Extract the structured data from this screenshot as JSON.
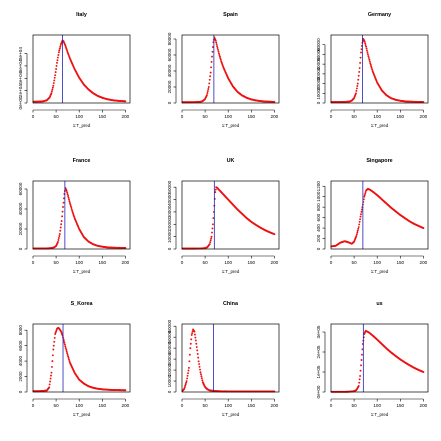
{
  "colors": {
    "curve": "#ee1111",
    "vline": "#2222bb",
    "frame": "#000000"
  },
  "chart_data": [
    {
      "type": "scatter",
      "title": "Italy",
      "xlabel": "1:T_pred",
      "xlim": [
        0,
        210
      ],
      "xticks": [
        "0",
        "50",
        "100",
        "150",
        "200"
      ],
      "ylim": [
        0,
        110000
      ],
      "yticks": [
        "0e+00",
        "2e+04",
        "4e+04",
        "6e+04",
        "8e+04"
      ],
      "ytick_values": [
        0,
        20000,
        40000,
        60000,
        80000
      ],
      "vline_x": 64,
      "series": [
        {
          "x": [
            0,
            6,
            12,
            18,
            24,
            30,
            36,
            40,
            44,
            48,
            52,
            56,
            60,
            62,
            64,
            66,
            70,
            75,
            80,
            90,
            100,
            110,
            120,
            130,
            140,
            150,
            160,
            170,
            180,
            190,
            200
          ],
          "values": [
            2000,
            2000,
            2200,
            2500,
            3000,
            4500,
            9000,
            16000,
            28000,
            45000,
            65000,
            82000,
            94000,
            98000,
            101000,
            100000,
            93000,
            82000,
            72000,
            55000,
            41000,
            30000,
            22000,
            16000,
            11500,
            8500,
            6300,
            4800,
            3800,
            3200,
            2800
          ]
        }
      ]
    },
    {
      "type": "scatter",
      "title": "Spain",
      "xlabel": "1:T_pred",
      "xlim": [
        0,
        210
      ],
      "xticks": [
        "0",
        "50",
        "100",
        "150",
        "200"
      ],
      "ylim": [
        0,
        85000
      ],
      "yticks": [
        "0",
        "20000",
        "40000",
        "60000",
        "80000"
      ],
      "ytick_values": [
        0,
        20000,
        40000,
        60000,
        80000
      ],
      "vline_x": 69,
      "series": [
        {
          "x": [
            0,
            10,
            20,
            30,
            40,
            45,
            50,
            54,
            58,
            62,
            65,
            68,
            70,
            73,
            76,
            80,
            85,
            90,
            100,
            110,
            120,
            130,
            140,
            150,
            160,
            170,
            180,
            190,
            200
          ],
          "values": [
            1000,
            1000,
            1000,
            1100,
            1500,
            2500,
            5000,
            10000,
            20000,
            38000,
            58000,
            76000,
            82000,
            78000,
            71000,
            62000,
            52000,
            44000,
            31000,
            21000,
            14000,
            9500,
            6500,
            4500,
            3200,
            2400,
            1900,
            1600,
            1400
          ]
        }
      ]
    },
    {
      "type": "scatter",
      "title": "Germany",
      "xlabel": "1:T_pred",
      "xlim": [
        0,
        210
      ],
      "xticks": [
        "0",
        "50",
        "100",
        "150",
        "200"
      ],
      "ylim": [
        0,
        70000
      ],
      "yticks": [
        "0",
        "10000",
        "20000",
        "30000",
        "40000",
        "50000",
        "60000"
      ],
      "ytick_values": [
        0,
        10000,
        20000,
        30000,
        40000,
        50000,
        60000
      ],
      "vline_x": 68,
      "series": [
        {
          "x": [
            0,
            10,
            20,
            30,
            40,
            45,
            50,
            54,
            58,
            62,
            65,
            68,
            70,
            73,
            76,
            80,
            85,
            90,
            100,
            110,
            120,
            130,
            140,
            150,
            160,
            170,
            180,
            190,
            200
          ],
          "values": [
            1000,
            1000,
            1000,
            1100,
            1500,
            2500,
            5000,
            10000,
            20000,
            36000,
            52000,
            62000,
            66000,
            63000,
            58000,
            50000,
            41000,
            33000,
            21000,
            13000,
            8000,
            5000,
            3300,
            2300,
            1700,
            1400,
            1200,
            1100,
            1000
          ]
        }
      ]
    },
    {
      "type": "scatter",
      "title": "France",
      "xlabel": "1:T_pred",
      "xlim": [
        0,
        210
      ],
      "xticks": [
        "0",
        "50",
        "100",
        "150",
        "200"
      ],
      "ylim": [
        0,
        68000
      ],
      "yticks": [
        "0",
        "20000",
        "40000",
        "60000"
      ],
      "ytick_values": [
        0,
        20000,
        40000,
        60000
      ],
      "vline_x": 69,
      "series": [
        {
          "x": [
            0,
            10,
            20,
            30,
            40,
            45,
            50,
            54,
            58,
            62,
            65,
            68,
            70,
            73,
            76,
            80,
            85,
            90,
            100,
            110,
            120,
            130,
            140,
            150,
            160,
            170,
            180,
            190,
            200
          ],
          "values": [
            500,
            500,
            500,
            600,
            900,
            1500,
            3000,
            7000,
            15000,
            28000,
            42000,
            55000,
            61000,
            58000,
            53000,
            46000,
            38000,
            31000,
            20000,
            12000,
            7500,
            4800,
            3200,
            2300,
            1700,
            1400,
            1200,
            1100,
            1000
          ]
        }
      ]
    },
    {
      "type": "scatter",
      "title": "UK",
      "xlabel": "1:T_pred",
      "xlim": [
        0,
        210
      ],
      "xticks": [
        "0",
        "50",
        "100",
        "150",
        "200"
      ],
      "ylim": [
        0,
        55000
      ],
      "yticks": [
        "0",
        "10000",
        "20000",
        "30000",
        "40000",
        "50000"
      ],
      "ytick_values": [
        0,
        10000,
        20000,
        30000,
        40000,
        50000
      ],
      "vline_x": 70,
      "series": [
        {
          "x": [
            0,
            10,
            20,
            30,
            40,
            50,
            55,
            60,
            64,
            67,
            70,
            72,
            74,
            76,
            80,
            90,
            100,
            110,
            120,
            130,
            140,
            150,
            160,
            170,
            180,
            190,
            200
          ],
          "values": [
            300,
            300,
            300,
            300,
            400,
            700,
            1500,
            4000,
            10000,
            20000,
            35000,
            46000,
            50000,
            49500,
            48000,
            44000,
            40000,
            36000,
            32000,
            28500,
            25000,
            22000,
            19500,
            17200,
            15200,
            13500,
            12000
          ]
        }
      ]
    },
    {
      "type": "scatter",
      "title": "Singapore",
      "xlabel": "1:T_pred",
      "xlim": [
        0,
        210
      ],
      "xticks": [
        "0",
        "50",
        "100",
        "150",
        "200"
      ],
      "ylim": [
        0,
        1300
      ],
      "yticks": [
        "0",
        "200",
        "400",
        "600",
        "800",
        "1000",
        "1200"
      ],
      "ytick_values": [
        0,
        200,
        400,
        600,
        800,
        1000,
        1200
      ],
      "vline_x": 69,
      "series": [
        {
          "x": [
            0,
            10,
            20,
            30,
            40,
            45,
            50,
            55,
            60,
            64,
            68,
            72,
            76,
            80,
            85,
            90,
            100,
            110,
            120,
            130,
            140,
            150,
            160,
            170,
            180,
            190,
            200
          ],
          "values": [
            50,
            60,
            120,
            150,
            120,
            100,
            140,
            250,
            420,
            620,
            800,
            1000,
            1120,
            1150,
            1130,
            1100,
            1030,
            950,
            870,
            790,
            720,
            650,
            590,
            530,
            480,
            440,
            400
          ]
        }
      ]
    },
    {
      "type": "scatter",
      "title": "S_Korea",
      "xlabel": "1:T_pred",
      "xlim": [
        0,
        210
      ],
      "xticks": [
        "0",
        "50",
        "100",
        "150",
        "200"
      ],
      "ylim": [
        0,
        8800
      ],
      "yticks": [
        "0",
        "2000",
        "4000",
        "6000",
        "8000"
      ],
      "ytick_values": [
        0,
        2000,
        4000,
        6000,
        8000
      ],
      "vline_x": 65,
      "series": [
        {
          "x": [
            0,
            10,
            20,
            30,
            35,
            40,
            44,
            48,
            52,
            55,
            58,
            61,
            64,
            67,
            70,
            75,
            80,
            90,
            100,
            110,
            120,
            130,
            140,
            150,
            160,
            170,
            180,
            190,
            200
          ],
          "values": [
            100,
            100,
            120,
            200,
            600,
            2500,
            5500,
            7500,
            8200,
            8300,
            8100,
            7800,
            7300,
            6600,
            5900,
            4800,
            3800,
            2500,
            1600,
            1100,
            750,
            550,
            420,
            350,
            300,
            270,
            250,
            240,
            230
          ]
        }
      ]
    },
    {
      "type": "scatter",
      "title": "China",
      "xlabel": "1:T_pred",
      "xlim": [
        0,
        210
      ],
      "xticks": [
        "0",
        "50",
        "100",
        "150",
        "200"
      ],
      "ylim": [
        0,
        62000
      ],
      "yticks": [
        "0",
        "10000",
        "20000",
        "30000",
        "40000",
        "50000",
        "60000"
      ],
      "ytick_values": [
        0,
        10000,
        20000,
        30000,
        40000,
        50000,
        60000
      ],
      "vline_x": 68,
      "series": [
        {
          "x": [
            0,
            5,
            10,
            15,
            18,
            21,
            24,
            27,
            30,
            33,
            36,
            40,
            45,
            50,
            55,
            60,
            70,
            80,
            90,
            100,
            120,
            140,
            160,
            180,
            200
          ],
          "values": [
            500,
            3000,
            10000,
            22000,
            40000,
            52000,
            57000,
            55000,
            47000,
            38000,
            28000,
            18000,
            9000,
            4500,
            2500,
            1500,
            900,
            700,
            600,
            550,
            520,
            500,
            500,
            500,
            500
          ]
        }
      ]
    },
    {
      "type": "scatter",
      "title": "us",
      "xlabel": "1:T_pred",
      "xlim": [
        0,
        210
      ],
      "xticks": [
        "0",
        "50",
        "100",
        "150",
        "200"
      ],
      "ylim": [
        0,
        340000
      ],
      "yticks": [
        "0e+00",
        "1e+05",
        "2e+05",
        "3e+05"
      ],
      "ytick_values": [
        0,
        100000,
        200000,
        300000
      ],
      "vline_x": 70,
      "series": [
        {
          "x": [
            0,
            10,
            20,
            30,
            40,
            50,
            55,
            60,
            63,
            66,
            69,
            72,
            75,
            78,
            82,
            90,
            100,
            110,
            120,
            130,
            140,
            150,
            160,
            170,
            180,
            190,
            200
          ],
          "values": [
            1000,
            1000,
            1000,
            1000,
            1500,
            4000,
            10000,
            30000,
            80000,
            160000,
            240000,
            290000,
            305000,
            303000,
            298000,
            283000,
            262000,
            240000,
            218000,
            198000,
            180000,
            163000,
            148000,
            134000,
            121000,
            110000,
            100000
          ]
        }
      ]
    }
  ]
}
